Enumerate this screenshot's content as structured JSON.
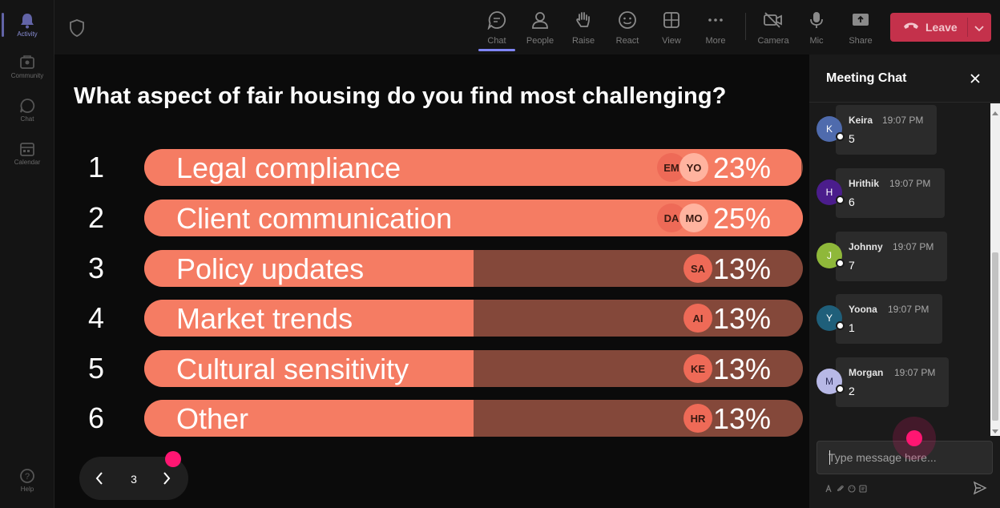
{
  "rail": {
    "items": [
      {
        "label": "Activity",
        "icon": "bell-icon",
        "active": true
      },
      {
        "label": "Community",
        "icon": "community-icon",
        "active": false
      },
      {
        "label": "Chat",
        "icon": "chat-icon",
        "active": false
      },
      {
        "label": "Calendar",
        "icon": "calendar-icon",
        "active": false
      }
    ],
    "help_label": "Help"
  },
  "toolbar": {
    "buttons": [
      {
        "label": "Chat",
        "icon": "chat-icon",
        "active": true
      },
      {
        "label": "People",
        "icon": "people-icon"
      },
      {
        "label": "Raise",
        "icon": "hand-icon"
      },
      {
        "label": "React",
        "icon": "smiley-icon"
      },
      {
        "label": "View",
        "icon": "grid-icon"
      },
      {
        "label": "More",
        "icon": "more-icon"
      },
      {
        "label": "Camera",
        "icon": "camera-off-icon"
      },
      {
        "label": "Mic",
        "icon": "mic-icon"
      },
      {
        "label": "Share",
        "icon": "share-icon"
      }
    ],
    "leave_label": "Leave",
    "leave_color": "#c4314b"
  },
  "poll": {
    "question": "What aspect of fair housing do you find most challenging?",
    "options": [
      {
        "num": "1",
        "label": "Legal compliance",
        "pct": "23%",
        "fraction": 0.23,
        "avatars": [
          "EM",
          "YO"
        ]
      },
      {
        "num": "2",
        "label": "Client communication",
        "pct": "25%",
        "fraction": 0.25,
        "avatars": [
          "DA",
          "MO"
        ]
      },
      {
        "num": "3",
        "label": "Policy updates",
        "pct": "13%",
        "fraction": 0.13,
        "avatars": [
          "SA"
        ]
      },
      {
        "num": "4",
        "label": "Market trends",
        "pct": "13%",
        "fraction": 0.13,
        "avatars": [
          "AI"
        ]
      },
      {
        "num": "5",
        "label": "Cultural sensitivity",
        "pct": "13%",
        "fraction": 0.13,
        "avatars": [
          "KE"
        ]
      },
      {
        "num": "6",
        "label": "Other",
        "pct": "13%",
        "fraction": 0.13,
        "avatars": [
          "HR"
        ]
      }
    ],
    "page": "3",
    "accent": "#f57c63"
  },
  "chat": {
    "title": "Meeting Chat",
    "messages": [
      {
        "initial": "K",
        "name": "Keira",
        "time": "19:07 PM",
        "text": "5",
        "color": "#4f6bad"
      },
      {
        "initial": "H",
        "name": "Hrithik",
        "time": "19:07 PM",
        "text": "6",
        "color": "#4b1d8c"
      },
      {
        "initial": "J",
        "name": "Johnny",
        "time": "19:07 PM",
        "text": "7",
        "color": "#8fb83a"
      },
      {
        "initial": "Y",
        "name": "Yoona",
        "time": "19:07 PM",
        "text": "1",
        "color": "#1f5f7a"
      },
      {
        "initial": "M",
        "name": "Morgan",
        "time": "19:07 PM",
        "text": "2",
        "color": "#b7b8e6"
      }
    ],
    "compose_placeholder": "Type message here..."
  }
}
